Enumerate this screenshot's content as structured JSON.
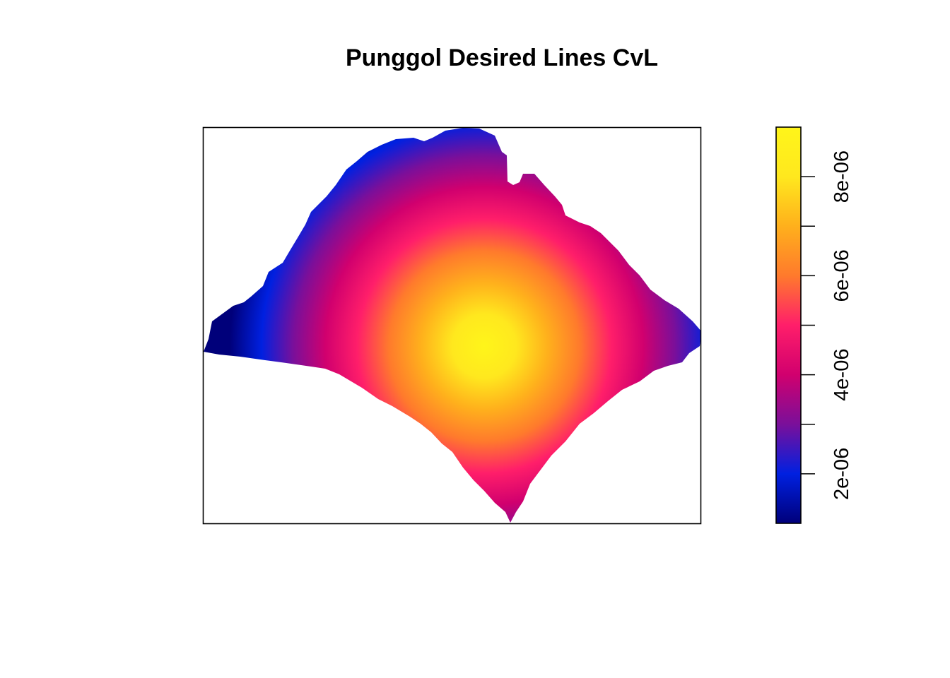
{
  "chart_data": {
    "type": "heatmap",
    "title": "Punggol Desired Lines CvL",
    "xlabel": "",
    "ylabel": "",
    "axes_shown": false,
    "grid": false,
    "colormap": "plasma",
    "colormap_stops": [
      "#0D0887",
      "#1B0C94",
      "#3E049C",
      "#6A00A8",
      "#8F0DA4",
      "#B12A90",
      "#CC4778",
      "#E16462",
      "#F1844B",
      "#FCA636",
      "#FCCE25",
      "#F0F921"
    ],
    "raster_colors": [
      "#00007A",
      "#0020E0",
      "#7A0F9A",
      "#D1006E",
      "#FF1E6A",
      "#FF7A2C",
      "#FFB01C",
      "#FFE81E",
      "#FFF51A"
    ],
    "value_range": [
      1e-06,
      9e-06
    ],
    "peak_value": 9e-06,
    "min_value": 1e-06,
    "legend": {
      "placement": "right",
      "ticks": [
        2e-06,
        3e-06,
        4e-06,
        5e-06,
        6e-06,
        7e-06,
        8e-06
      ],
      "tick_labels": [
        "2e-06",
        "4e-06",
        "6e-06",
        "8e-06"
      ],
      "labelled_ticks": [
        2e-06,
        4e-06,
        6e-06,
        8e-06
      ]
    }
  }
}
